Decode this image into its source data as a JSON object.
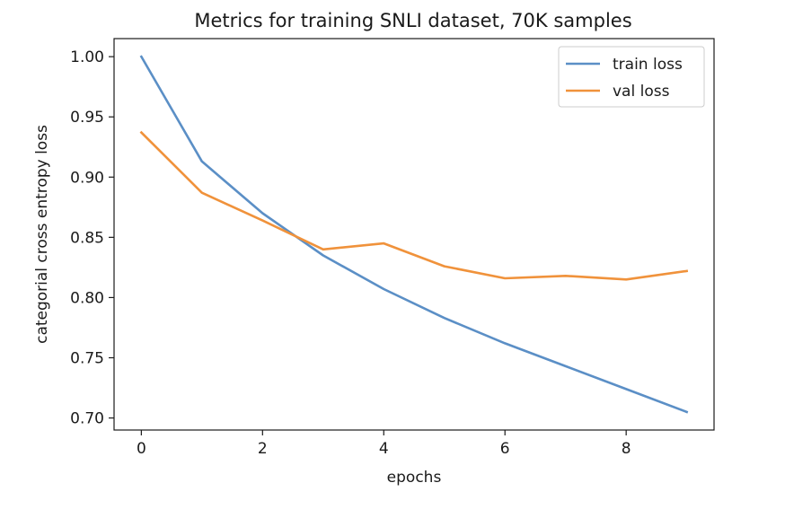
{
  "chart_data": {
    "type": "line",
    "title": "Metrics for training SNLI dataset, 70K samples",
    "xlabel": "epochs",
    "ylabel": "categorial cross entropy loss",
    "x": [
      0,
      1,
      2,
      3,
      4,
      5,
      6,
      7,
      8,
      9
    ],
    "series": [
      {
        "name": "train loss",
        "color": "#5b8fc6",
        "values": [
          1.0,
          0.913,
          0.87,
          0.835,
          0.807,
          0.783,
          0.762,
          0.743,
          0.724,
          0.705
        ]
      },
      {
        "name": "val loss",
        "color": "#f0923b",
        "values": [
          0.937,
          0.887,
          0.864,
          0.84,
          0.845,
          0.826,
          0.816,
          0.818,
          0.815,
          0.822
        ]
      }
    ],
    "xlim": [
      -0.45,
      9.45
    ],
    "ylim": [
      0.69,
      1.015
    ],
    "xticks": [
      0,
      2,
      4,
      6,
      8
    ],
    "xtick_labels": [
      "0",
      "2",
      "4",
      "6",
      "8"
    ],
    "yticks": [
      0.7,
      0.75,
      0.8,
      0.85,
      0.9,
      0.95,
      1.0
    ],
    "ytick_labels": [
      "0.70",
      "0.75",
      "0.80",
      "0.85",
      "0.90",
      "0.95",
      "1.00"
    ],
    "grid": false,
    "legend_position": "top-right"
  }
}
